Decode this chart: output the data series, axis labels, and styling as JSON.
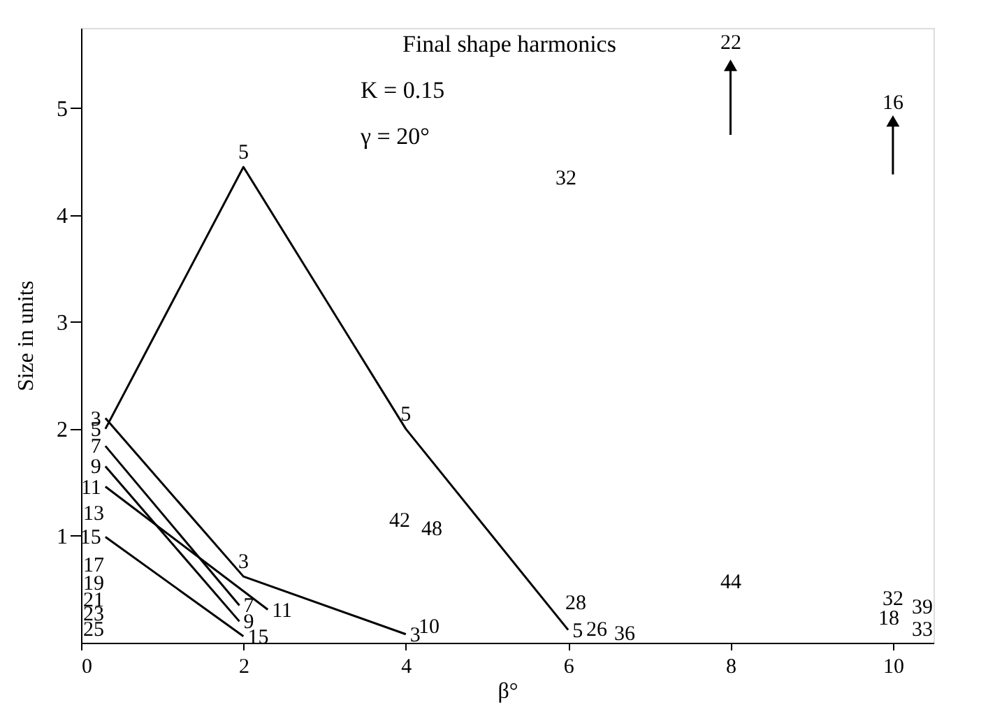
{
  "chart_data": {
    "type": "line",
    "title": "Final shape harmonics",
    "subtitle": [
      "K = 0.15",
      "γ = 20°"
    ],
    "xlabel": "β°",
    "ylabel": "Size in units",
    "xlim": [
      0,
      10.5
    ],
    "ylim": [
      0,
      5.75
    ],
    "xticks": [
      0,
      2,
      4,
      6,
      8,
      10
    ],
    "yticks": [
      1,
      2,
      3,
      4,
      5
    ],
    "grid": false,
    "marker": "none",
    "line_style": "solid",
    "series": [
      {
        "color": "#000000",
        "x": [
          0.3,
          2,
          4,
          6
        ],
        "values": [
          2.0,
          4.45,
          2.0,
          0.12
        ]
      },
      {
        "color": "#000000",
        "x": [
          0.3,
          2,
          4
        ],
        "values": [
          2.1,
          0.62,
          0.08
        ]
      },
      {
        "color": "#000000",
        "x": [
          0.3,
          1.95
        ],
        "values": [
          1.84,
          0.35
        ]
      },
      {
        "color": "#000000",
        "x": [
          0.3,
          1.95
        ],
        "values": [
          1.65,
          0.2
        ]
      },
      {
        "color": "#000000",
        "x": [
          0.3,
          2.3
        ],
        "values": [
          1.46,
          0.31
        ]
      },
      {
        "color": "#000000",
        "x": [
          0.3,
          2.0
        ],
        "values": [
          0.99,
          0.06
        ]
      },
      {
        "color": "#000000",
        "marker": "triangle",
        "x": [
          8,
          8
        ],
        "values": [
          4.75,
          5.4
        ]
      },
      {
        "color": "#000000",
        "marker": "triangle",
        "x": [
          10,
          10
        ],
        "values": [
          4.38,
          4.88
        ]
      }
    ],
    "annotations": [
      {
        "text": "5",
        "x": 0.3,
        "y": 2.0
      },
      {
        "text": "5",
        "x": 2,
        "y": 4.45
      },
      {
        "text": "5",
        "x": 4,
        "y": 2.0
      },
      {
        "text": "5",
        "x": 6,
        "y": 0.12
      },
      {
        "text": "3",
        "x": 0.3,
        "y": 2.1
      },
      {
        "text": "3",
        "x": 2,
        "y": 0.62
      },
      {
        "text": "3",
        "x": 4,
        "y": 0.08
      },
      {
        "text": "7",
        "x": 0.3,
        "y": 1.84
      },
      {
        "text": "7",
        "x": 1.95,
        "y": 0.35
      },
      {
        "text": "9",
        "x": 0.3,
        "y": 1.65
      },
      {
        "text": "9",
        "x": 1.95,
        "y": 0.2
      },
      {
        "text": "11",
        "x": 0.3,
        "y": 1.46
      },
      {
        "text": "11",
        "x": 2.3,
        "y": 0.31
      },
      {
        "text": "15",
        "x": 0.3,
        "y": 0.99
      },
      {
        "text": "15",
        "x": 2.0,
        "y": 0.06
      },
      "13",
      "17",
      "19",
      "21",
      "23",
      "25",
      "42",
      "48",
      "10",
      "32",
      "28",
      "26",
      "36",
      "44",
      "32",
      "39",
      "18",
      "33",
      "22",
      "16"
    ]
  }
}
